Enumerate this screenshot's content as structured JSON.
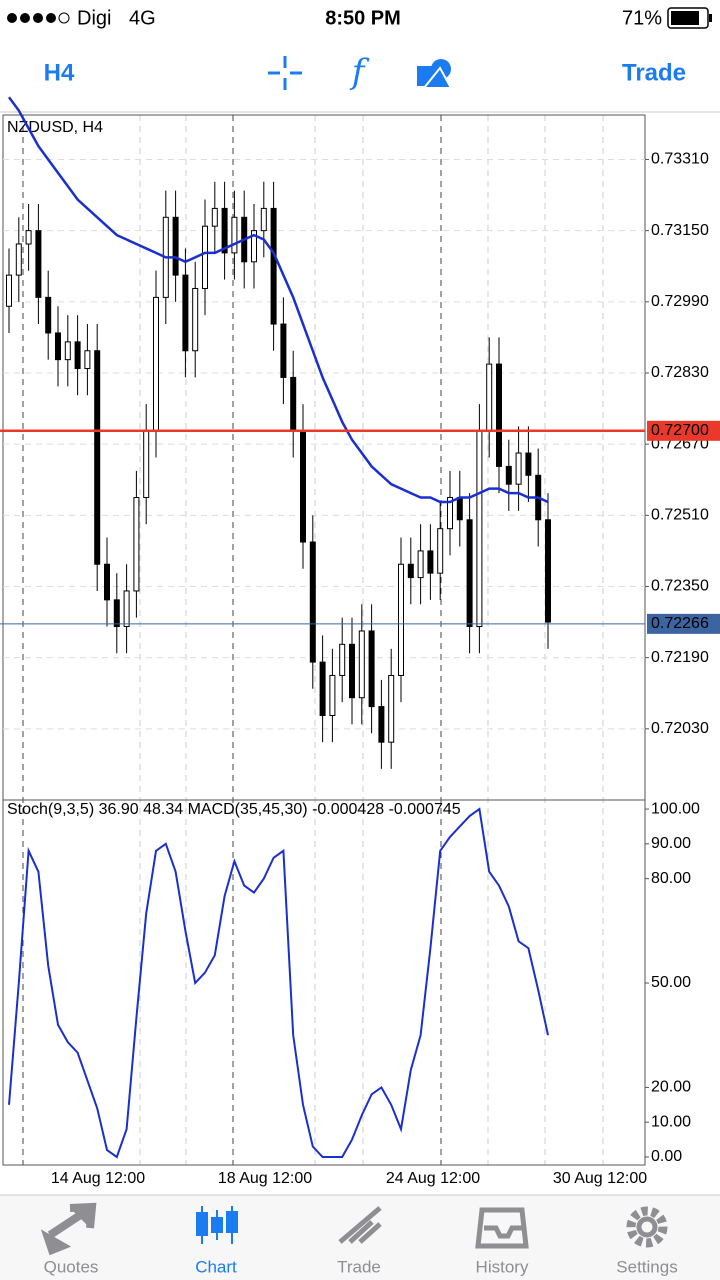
{
  "status_bar": {
    "carrier": "Digi",
    "network": "4G",
    "time": "8:50 PM",
    "battery": "71%"
  },
  "toolbar": {
    "timeframe": "H4",
    "trade": "Trade"
  },
  "chart_data": {
    "type": "candlestick",
    "title": "NZDUSD, H4",
    "ylim": [
      0.7187,
      0.7341
    ],
    "yticks": [
      {
        "value": 0.7331,
        "label": "0.73310"
      },
      {
        "value": 0.7315,
        "label": "0.73150"
      },
      {
        "value": 0.7299,
        "label": "0.72990"
      },
      {
        "value": 0.7283,
        "label": "0.72830"
      },
      {
        "value": 0.7267,
        "label": "0.72670"
      },
      {
        "value": 0.7251,
        "label": "0.72510"
      },
      {
        "value": 0.7235,
        "label": "0.72350"
      },
      {
        "value": 0.7219,
        "label": "0.72190"
      },
      {
        "value": 0.7203,
        "label": "0.72030"
      }
    ],
    "price_lines": [
      {
        "value": 0.727,
        "label": "0.72700",
        "color": "#e8392b"
      },
      {
        "value": 0.72266,
        "color": "#3c64a0"
      }
    ],
    "x_labels": [
      "14 Aug 12:00",
      "18 Aug 12:00",
      "24 Aug 12:00",
      "30 Aug 12:00"
    ],
    "open": [
      0.7298,
      0.7305,
      0.7312,
      0.7315,
      0.73,
      0.7292,
      0.7286,
      0.729,
      0.7284,
      0.7288,
      0.724,
      0.7232,
      0.7226,
      0.7234,
      0.7255,
      0.727,
      0.73,
      0.7318,
      0.7305,
      0.7288,
      0.7302,
      0.7316,
      0.732,
      0.731,
      0.7318,
      0.7308,
      0.7315,
      0.732,
      0.7294,
      0.7282,
      0.727,
      0.7245,
      0.7218,
      0.7206,
      0.7215,
      0.7222,
      0.721,
      0.7225,
      0.7208,
      0.72,
      0.7215,
      0.724,
      0.7237,
      0.7243,
      0.7238,
      0.7248,
      0.7255,
      0.725,
      0.7226,
      0.727,
      0.7285,
      0.7262,
      0.7258,
      0.7265,
      0.726,
      0.725
    ],
    "high": [
      0.7311,
      0.7318,
      0.7321,
      0.7321,
      0.7306,
      0.7298,
      0.7296,
      0.7296,
      0.7294,
      0.7294,
      0.7246,
      0.7238,
      0.724,
      0.7261,
      0.7276,
      0.7306,
      0.7324,
      0.7324,
      0.7311,
      0.7308,
      0.7322,
      0.7326,
      0.7326,
      0.7324,
      0.7324,
      0.7321,
      0.7326,
      0.7326,
      0.73,
      0.7288,
      0.7276,
      0.7251,
      0.7224,
      0.7221,
      0.7228,
      0.7228,
      0.7231,
      0.7231,
      0.7214,
      0.7221,
      0.7246,
      0.7246,
      0.7249,
      0.7249,
      0.7254,
      0.7261,
      0.7261,
      0.7256,
      0.7276,
      0.7291,
      0.7291,
      0.7268,
      0.7271,
      0.7271,
      0.7266,
      0.7256
    ],
    "low": [
      0.7292,
      0.7299,
      0.7306,
      0.7294,
      0.7286,
      0.728,
      0.728,
      0.7278,
      0.7278,
      0.7234,
      0.7226,
      0.722,
      0.722,
      0.7228,
      0.7249,
      0.7264,
      0.7294,
      0.7299,
      0.7282,
      0.7282,
      0.7296,
      0.731,
      0.7304,
      0.7304,
      0.7302,
      0.7302,
      0.7309,
      0.7288,
      0.7276,
      0.7264,
      0.7239,
      0.7212,
      0.72,
      0.72,
      0.7209,
      0.7204,
      0.7204,
      0.7202,
      0.7194,
      0.7194,
      0.7209,
      0.7231,
      0.7231,
      0.7232,
      0.7232,
      0.7242,
      0.7244,
      0.722,
      0.722,
      0.7264,
      0.7256,
      0.7252,
      0.7252,
      0.7254,
      0.7244,
      0.7221
    ],
    "close": [
      0.7305,
      0.7312,
      0.7315,
      0.73,
      0.7292,
      0.7286,
      0.729,
      0.7284,
      0.7288,
      0.724,
      0.7232,
      0.7226,
      0.7234,
      0.7255,
      0.727,
      0.73,
      0.7318,
      0.7305,
      0.7288,
      0.7302,
      0.7316,
      0.732,
      0.731,
      0.7318,
      0.7308,
      0.7315,
      0.732,
      0.7294,
      0.7282,
      0.727,
      0.7245,
      0.7218,
      0.7206,
      0.7215,
      0.7222,
      0.721,
      0.7225,
      0.7208,
      0.72,
      0.7215,
      0.724,
      0.7237,
      0.7243,
      0.7238,
      0.7248,
      0.7255,
      0.725,
      0.7226,
      0.727,
      0.7285,
      0.7262,
      0.7258,
      0.7265,
      0.726,
      0.725,
      0.7227
    ],
    "ma": {
      "color": "#1a2fd0",
      "values": [
        0.7345,
        0.7342,
        0.7338,
        0.7334,
        0.7331,
        0.7328,
        0.7325,
        0.7322,
        0.732,
        0.7318,
        0.7316,
        0.7314,
        0.7313,
        0.7312,
        0.7311,
        0.731,
        0.7309,
        0.7309,
        0.7308,
        0.7309,
        0.731,
        0.731,
        0.7311,
        0.7312,
        0.7313,
        0.7314,
        0.7313,
        0.731,
        0.7305,
        0.73,
        0.7294,
        0.7288,
        0.7282,
        0.7277,
        0.7272,
        0.7268,
        0.7265,
        0.7262,
        0.726,
        0.7258,
        0.7257,
        0.7256,
        0.7255,
        0.7255,
        0.7254,
        0.7254,
        0.7255,
        0.7255,
        0.7256,
        0.7257,
        0.7257,
        0.7256,
        0.7256,
        0.7255,
        0.7255,
        0.7254
      ]
    },
    "oscillator": {
      "label": "Stoch(9,3,5) 36.90 48.34 MACD(35,45,30) -0.000428 -0.000745",
      "ylim": [
        -2.3,
        102.6
      ],
      "yticks": [
        {
          "value": 100,
          "label": "100.00"
        },
        {
          "value": 90,
          "label": "90.00"
        },
        {
          "value": 80,
          "label": "80.00"
        },
        {
          "value": 50,
          "label": "50.00"
        },
        {
          "value": 20,
          "label": "20.00"
        },
        {
          "value": 10,
          "label": "10.00"
        },
        {
          "value": 0,
          "label": "0.00"
        }
      ],
      "series": [
        {
          "color": "#1a2fd0",
          "values": [
            15,
            50,
            88,
            82,
            55,
            38,
            33,
            30,
            22,
            14,
            2,
            0,
            8,
            40,
            70,
            88,
            90,
            82,
            65,
            50,
            53,
            58,
            75,
            85,
            78,
            76,
            80,
            86,
            88,
            35,
            15,
            3,
            0,
            0,
            0,
            5,
            12,
            18,
            20,
            15,
            8,
            25,
            35,
            60,
            88,
            92,
            95,
            98,
            100,
            82,
            78,
            72,
            62,
            60,
            48,
            35
          ]
        }
      ]
    }
  },
  "tab_bar": {
    "tabs": [
      "Quotes",
      "Chart",
      "Trade",
      "History",
      "Settings"
    ],
    "active": 1
  }
}
